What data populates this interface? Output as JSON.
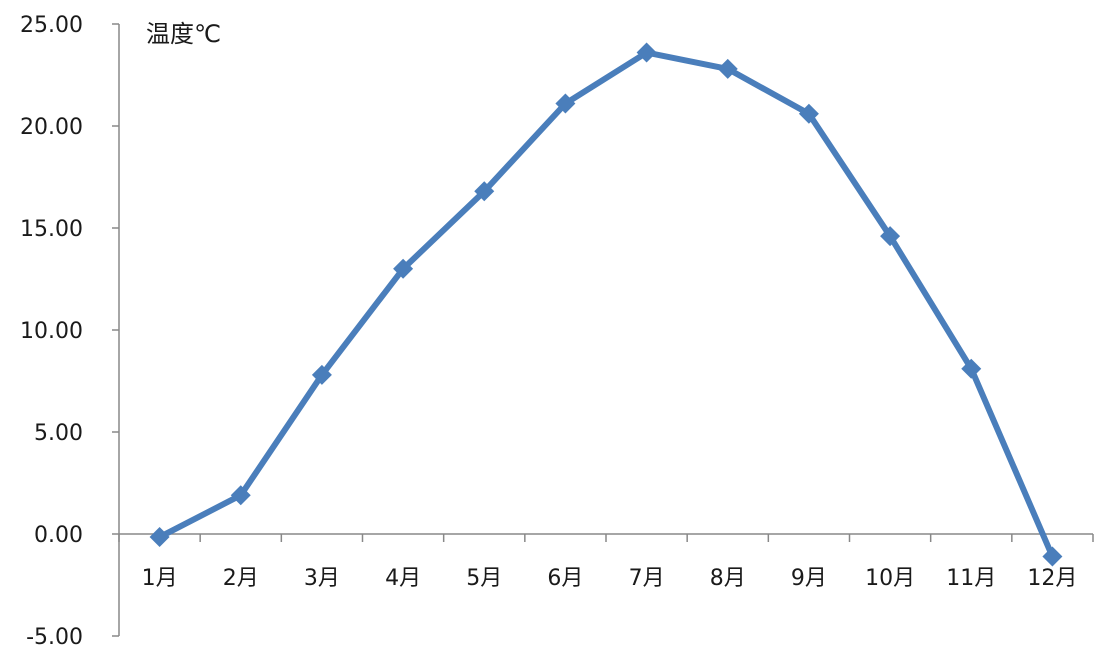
{
  "chart_data": {
    "type": "line",
    "categories": [
      "1月",
      "2月",
      "3月",
      "4月",
      "5月",
      "6月",
      "7月",
      "8月",
      "9月",
      "10月",
      "11月",
      "12月"
    ],
    "series": [
      {
        "values": [
          -0.15,
          1.9,
          7.8,
          13.0,
          16.8,
          21.1,
          23.6,
          22.8,
          20.6,
          14.6,
          8.1,
          -1.1
        ],
        "color": "#4a7ebb",
        "marker": "diamond"
      }
    ],
    "ylabel": "温度℃",
    "ylim": [
      -5,
      25
    ],
    "yticks": [
      "25.00",
      "20.00",
      "15.00",
      "10.00",
      "5.00",
      "0.00",
      "-5.00"
    ],
    "ytick_values": [
      25,
      20,
      15,
      10,
      5,
      0,
      -5
    ],
    "grid": false,
    "axis_color": "#888888"
  }
}
